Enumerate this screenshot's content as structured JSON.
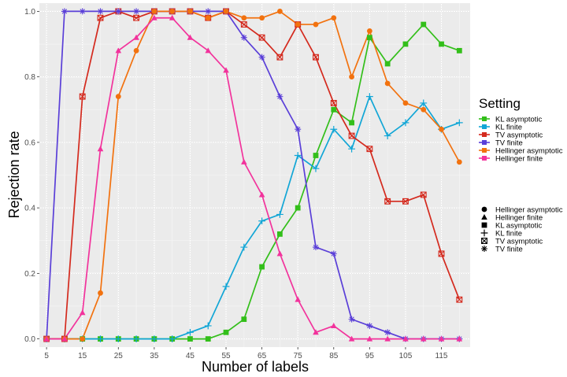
{
  "chart_data": {
    "type": "line",
    "title": "",
    "xlabel": "Number of labels",
    "ylabel": "Rejection rate",
    "xlim": [
      3,
      123
    ],
    "ylim": [
      -0.025,
      1.025
    ],
    "x": [
      5,
      10,
      15,
      20,
      25,
      30,
      35,
      40,
      45,
      50,
      55,
      60,
      65,
      70,
      75,
      80,
      85,
      90,
      95,
      100,
      105,
      110,
      115,
      120
    ],
    "x_ticks": [
      5,
      15,
      25,
      35,
      45,
      55,
      65,
      75,
      85,
      95,
      105,
      115
    ],
    "x_tick_labels": [
      "5",
      "15",
      "25",
      "35",
      "45",
      "55",
      "65",
      "75",
      "85",
      "95",
      "105",
      "115"
    ],
    "y_ticks": [
      0,
      0.2,
      0.4,
      0.6,
      0.8,
      1.0
    ],
    "y_tick_labels": [
      "0.0",
      "0.2",
      "0.4",
      "0.6",
      "0.8",
      "1.0"
    ],
    "grid": true,
    "legend_position": "right",
    "color_legend_title": "Setting",
    "shape_legend_title": "",
    "shape_legend": [
      {
        "label": "Hellinger asymptotic",
        "shape": "circle"
      },
      {
        "label": "Hellinger finite",
        "shape": "triangle"
      },
      {
        "label": "KL asymptotic",
        "shape": "square"
      },
      {
        "label": "KL finite",
        "shape": "plus"
      },
      {
        "label": "TV asymptotic",
        "shape": "boxx"
      },
      {
        "label": "TV finite",
        "shape": "asterisk"
      }
    ],
    "series": [
      {
        "name": "KL asymptotic",
        "color": "#33bf1a",
        "shape": "square",
        "values": [
          0,
          0,
          0,
          0,
          0,
          0,
          0,
          0,
          0,
          0,
          0.02,
          0.06,
          0.22,
          0.32,
          0.4,
          0.56,
          0.7,
          0.66,
          0.92,
          0.84,
          0.9,
          0.96,
          0.9,
          0.88
        ]
      },
      {
        "name": "KL finite",
        "color": "#11a6d6",
        "shape": "plus",
        "values": [
          0,
          0,
          0,
          0,
          0,
          0,
          0,
          0,
          0.02,
          0.04,
          0.16,
          0.28,
          0.36,
          0.38,
          0.56,
          0.52,
          0.64,
          0.58,
          0.74,
          0.62,
          0.66,
          0.72,
          0.64,
          0.66
        ]
      },
      {
        "name": "TV asymptotic",
        "color": "#d42a1e",
        "shape": "boxx",
        "values": [
          0,
          0,
          0.74,
          0.98,
          1.0,
          0.98,
          1.0,
          1.0,
          1.0,
          0.98,
          1.0,
          0.96,
          0.92,
          0.86,
          0.96,
          0.86,
          0.72,
          0.62,
          0.58,
          0.42,
          0.42,
          0.44,
          0.26,
          0.12
        ]
      },
      {
        "name": "TV finite",
        "color": "#5a3fd8",
        "shape": "asterisk",
        "values": [
          0,
          1.0,
          1.0,
          1.0,
          1.0,
          1.0,
          1.0,
          1.0,
          1.0,
          1.0,
          1.0,
          0.92,
          0.86,
          0.74,
          0.64,
          0.28,
          0.26,
          0.06,
          0.04,
          0.02,
          0,
          0,
          0,
          0
        ]
      },
      {
        "name": "Hellinger asymptotic",
        "color": "#f2720f",
        "shape": "circle",
        "values": [
          0,
          0,
          0,
          0.14,
          0.74,
          0.88,
          1.0,
          1.0,
          1.0,
          0.98,
          1.0,
          0.98,
          0.98,
          1.0,
          0.96,
          0.96,
          0.98,
          0.8,
          0.94,
          0.78,
          0.72,
          0.7,
          0.64,
          0.54
        ]
      },
      {
        "name": "Hellinger finite",
        "color": "#f2339c",
        "shape": "triangle",
        "values": [
          0,
          0,
          0.08,
          0.58,
          0.88,
          0.92,
          0.98,
          0.98,
          0.92,
          0.88,
          0.82,
          0.54,
          0.44,
          0.26,
          0.12,
          0.02,
          0.04,
          0,
          0,
          0,
          0,
          0,
          0,
          0
        ]
      }
    ]
  }
}
